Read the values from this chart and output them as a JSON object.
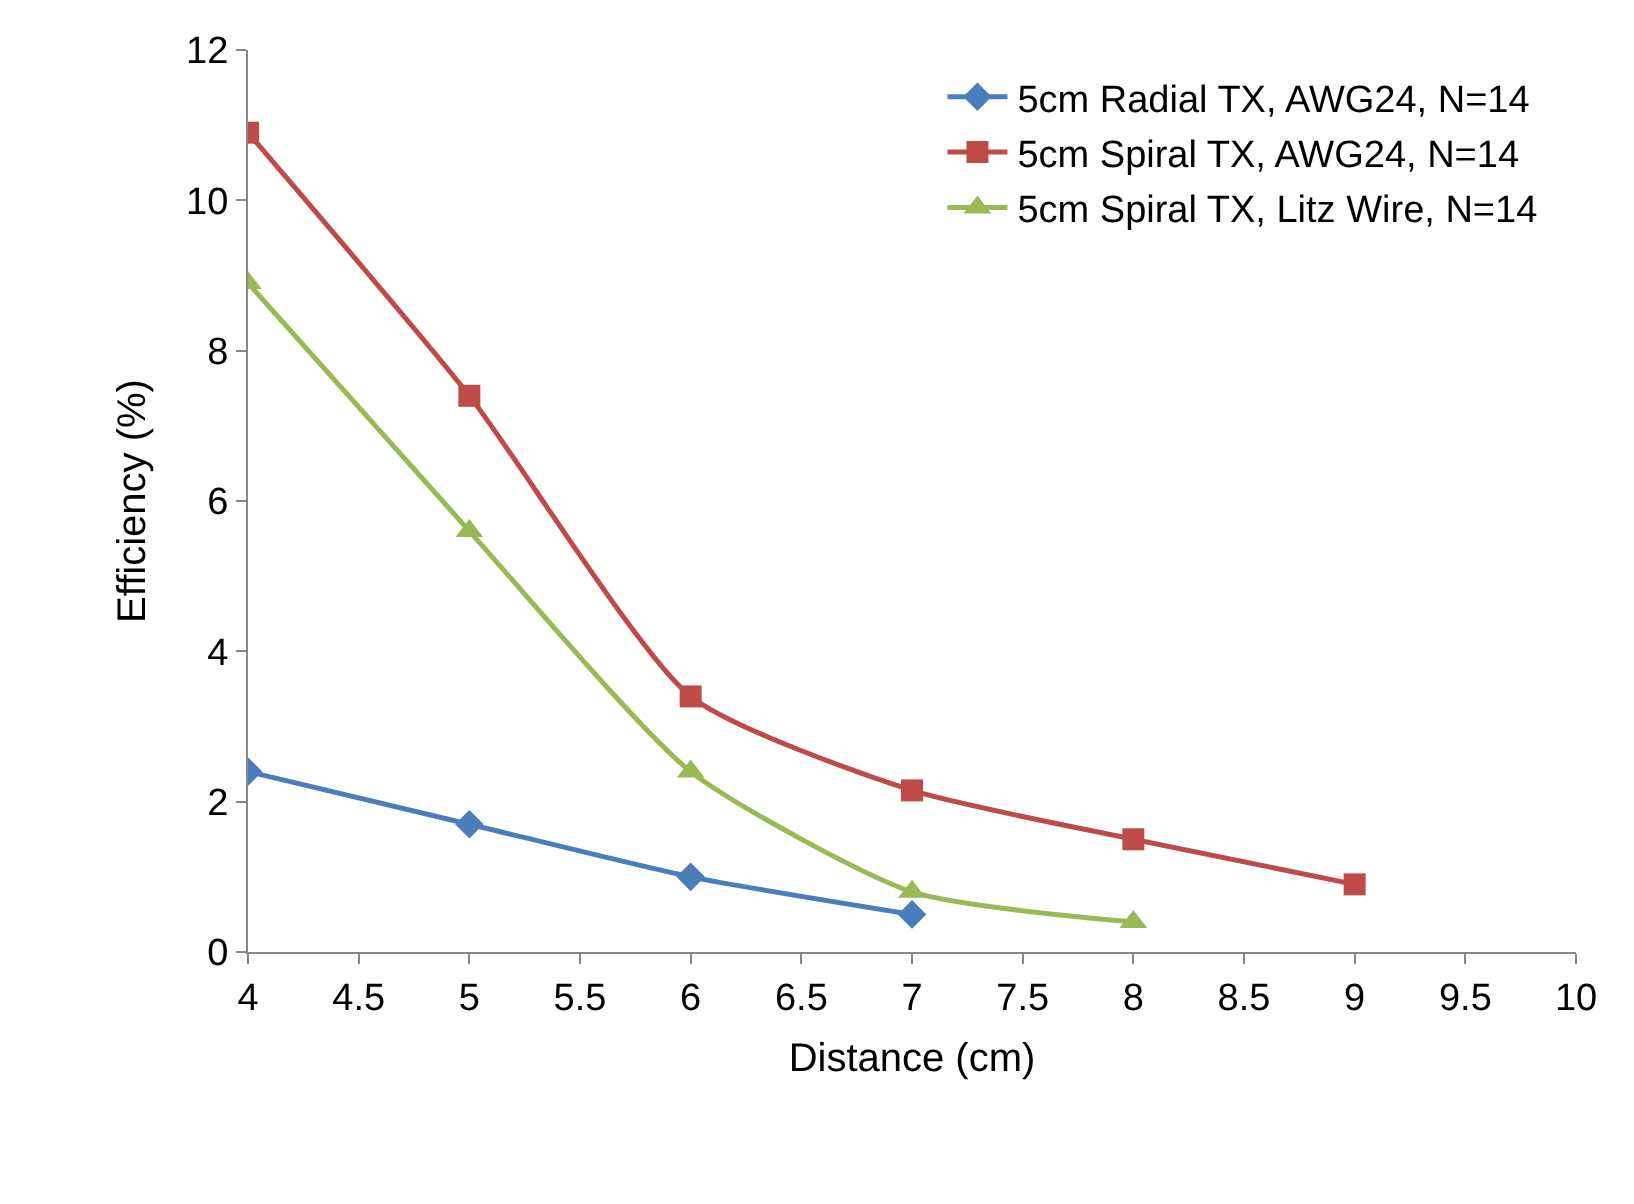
{
  "chart_data": {
    "type": "line",
    "xlabel": "Distance (cm)",
    "ylabel": "Efficiency (%)",
    "xlim": [
      4,
      10
    ],
    "xticks": [
      4,
      4.5,
      5,
      5.5,
      6,
      6.5,
      7,
      7.5,
      8,
      8.5,
      9,
      9.5,
      10
    ],
    "ylim": [
      0,
      12
    ],
    "yticks": [
      0,
      2,
      4,
      6,
      8,
      10,
      12
    ],
    "grid": false,
    "legend": "top right",
    "series": [
      {
        "name": "5cm Radial TX, AWG24, N=14",
        "color": "#4a7ebb",
        "marker": "diamond",
        "x": [
          4,
          5,
          6,
          7
        ],
        "values": [
          2.4,
          1.7,
          1.0,
          0.5
        ]
      },
      {
        "name": "5cm Spiral TX, AWG24, N=14",
        "color": "#be4b48",
        "marker": "square",
        "x": [
          4,
          5,
          6,
          7,
          8,
          9
        ],
        "values": [
          10.9,
          7.4,
          3.4,
          2.15,
          1.5,
          0.9
        ]
      },
      {
        "name": "5cm Spiral TX, Litz Wire, N=14",
        "color": "#98b954",
        "marker": "triangle",
        "x": [
          4,
          5,
          6,
          7,
          8
        ],
        "values": [
          8.9,
          5.6,
          2.4,
          0.8,
          0.4
        ]
      }
    ]
  }
}
